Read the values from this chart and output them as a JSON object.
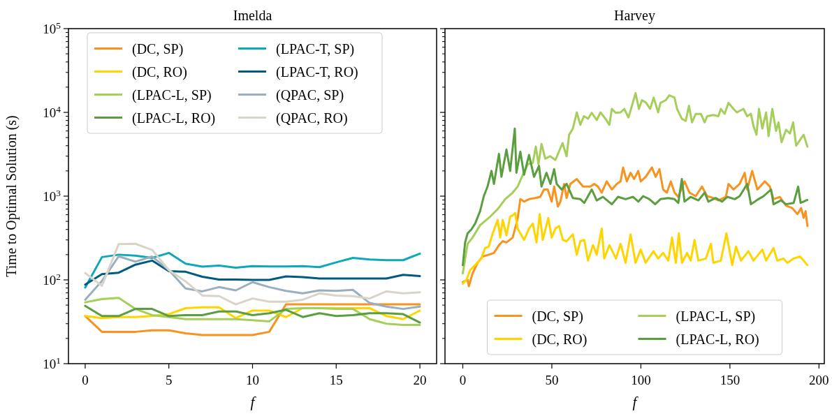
{
  "chart_data": [
    {
      "type": "line",
      "title": "Imelda",
      "xlabel": "f",
      "ylabel": "Time to Optimal Solution (s)",
      "log": "y",
      "legend": "top left",
      "grid": false,
      "xlim": [
        -1,
        21
      ],
      "xticks": [
        0,
        5,
        10,
        15,
        20
      ],
      "ylim": [
        10,
        100000
      ],
      "yticks": [
        {
          "value": 10,
          "label": "10$^{1}$"
        },
        {
          "value": 100,
          "label": "10$^{2}$"
        },
        {
          "value": 1000,
          "label": "10$^{3}$"
        },
        {
          "value": 10000,
          "label": "10$^{4}$"
        },
        {
          "value": 100000,
          "label": "10$^{5}$"
        }
      ],
      "x": [
        0,
        1,
        2,
        3,
        4,
        5,
        6,
        7,
        8,
        9,
        10,
        11,
        12,
        13,
        14,
        15,
        16,
        17,
        18,
        19,
        20
      ],
      "series": [
        {
          "name": "(DC, SP)",
          "color": "#f7931e",
          "values": [
            37,
            24,
            24,
            24,
            25,
            25,
            23,
            22,
            22,
            22,
            22,
            24,
            51,
            51,
            51,
            51,
            51,
            51,
            51,
            51,
            51
          ]
        },
        {
          "name": "(DC, RO)",
          "color": "#ffd500",
          "values": [
            37,
            35,
            36,
            36,
            37,
            39,
            46,
            47,
            47,
            35,
            43,
            43,
            36,
            46,
            46,
            46,
            46,
            46,
            37,
            34,
            43
          ]
        },
        {
          "name": "(LPAC-L, SP)",
          "color": "#a5cf5a",
          "values": [
            54,
            59,
            61,
            45,
            38,
            36,
            34,
            34,
            34,
            34,
            33,
            32,
            45,
            46,
            46,
            45,
            45,
            34,
            30,
            29,
            29
          ]
        },
        {
          "name": "(LPAC-L, RO)",
          "color": "#5a9e3f",
          "values": [
            49,
            37,
            37,
            45,
            45,
            37,
            38,
            38,
            42,
            42,
            38,
            40,
            44,
            36,
            40,
            37,
            38,
            40,
            40,
            39,
            31
          ]
        },
        {
          "name": "(LPAC-T, SP)",
          "color": "#0fa8b8",
          "values": [
            81,
            187,
            200,
            195,
            183,
            210,
            156,
            144,
            148,
            140,
            146,
            145,
            145,
            146,
            142,
            162,
            183,
            175,
            172,
            172,
            206
          ]
        },
        {
          "name": "(LPAC-T, RO)",
          "color": "#005a82",
          "values": [
            88,
            117,
            122,
            152,
            170,
            127,
            125,
            109,
            101,
            101,
            100,
            100,
            110,
            108,
            104,
            104,
            104,
            104,
            104,
            115,
            111
          ]
        },
        {
          "name": "(QPAC, SP)",
          "color": "#9aafbd",
          "values": [
            58,
            97,
            191,
            165,
            190,
            131,
            79,
            73,
            82,
            75,
            94,
            82,
            74,
            69,
            75,
            74,
            76,
            53,
            48,
            45,
            48
          ]
        },
        {
          "name": "(QPAC, RO)",
          "color": "#d8d4c8",
          "values": [
            121,
            85,
            267,
            270,
            228,
            131,
            96,
            65,
            64,
            51,
            60,
            55,
            55,
            58,
            69,
            65,
            64,
            60,
            73,
            69,
            71
          ]
        }
      ]
    },
    {
      "type": "line",
      "title": "Harvey",
      "xlabel": "f",
      "log": "y",
      "legend": "bottom",
      "grid": false,
      "tick_labels": "x",
      "xlim": [
        -10,
        203
      ],
      "xticks": [
        0,
        50,
        100,
        150,
        200
      ],
      "ylim": [
        10,
        100000
      ],
      "yticks": [
        {
          "value": 10,
          "label": null
        },
        {
          "value": 100,
          "label": null
        },
        {
          "value": 1000,
          "label": null
        },
        {
          "value": 10000,
          "label": null
        },
        {
          "value": 100000,
          "label": null
        }
      ],
      "series": [
        {
          "name": "(DC, SP)",
          "color": "#f7931e",
          "x": [
            0,
            2.7,
            3.4,
            5.5,
            8.3,
            11.1,
            14.6,
            17.5,
            20.3,
            22.4,
            24.5,
            28,
            30.8,
            32.3,
            34.4,
            37.2,
            40.7,
            43.5,
            45.6,
            47.7,
            49.9,
            51.3,
            53.4,
            54.8,
            56.9,
            58.3,
            60.4,
            64,
            67.5,
            71.7,
            73.8,
            75.9,
            78,
            80.8,
            83.7,
            86.5,
            88.6,
            90,
            92.1,
            94.2,
            96.2,
            98.5,
            99.9,
            102.7,
            106.2,
            108.3,
            110.4,
            112.5,
            114.6,
            116.8,
            118.9,
            121,
            124.5,
            127.3,
            130.8,
            134.3,
            137.2,
            140.7,
            143.5,
            147.7,
            149.2,
            152,
            155.5,
            158.3,
            159.7,
            162.5,
            165.4,
            169.6,
            172.4,
            174.5,
            178,
            181.5,
            185,
            187.9,
            190,
            191.4,
            192.5,
            193.5
          ],
          "values": [
            94,
            100,
            84,
            120,
            160,
            190,
            200,
            210,
            260,
            290,
            280,
            320,
            540,
            920,
            860,
            920,
            950,
            980,
            1200,
            1200,
            860,
            1300,
            750,
            860,
            1400,
            950,
            1400,
            1600,
            1300,
            1300,
            1400,
            1300,
            1100,
            1500,
            1200,
            1400,
            1500,
            2200,
            1500,
            1900,
            1600,
            2000,
            1500,
            1700,
            2200,
            1700,
            2100,
            1200,
            1100,
            1500,
            1100,
            980,
            1500,
            1100,
            1000,
            1300,
            1000,
            950,
            890,
            980,
            1400,
            1200,
            1400,
            1900,
            1200,
            2000,
            1200,
            1500,
            1300,
            920,
            980,
            770,
            720,
            610,
            720,
            550,
            660,
            440
          ]
        },
        {
          "name": "(DC, RO)",
          "color": "#ffd500",
          "x": [
            0,
            2,
            4.1,
            6.9,
            10.4,
            12.5,
            14.6,
            16.8,
            19.6,
            21,
            22.4,
            24.5,
            26.6,
            28,
            29.4,
            30.8,
            34.4,
            37.2,
            39.3,
            41.4,
            43.2,
            44.9,
            48,
            49.9,
            52,
            54.1,
            56.2,
            58.3,
            61.8,
            64,
            66,
            68.2,
            70.3,
            73.1,
            75.2,
            78,
            79.4,
            82.3,
            86,
            88.6,
            91.4,
            94.2,
            97,
            99.9,
            102.7,
            107,
            109.7,
            112.5,
            115.4,
            117.5,
            119.6,
            121.3,
            123.1,
            125.9,
            128,
            130.1,
            132.3,
            136.5,
            139.3,
            140.7,
            144.9,
            148,
            151.3,
            153.4,
            156.2,
            160.4,
            163.2,
            168.2,
            170.3,
            174.5,
            176.6,
            180.1,
            182.2,
            185.8,
            189.3,
            191.4,
            193.5
          ],
          "values": [
            90,
            100,
            130,
            150,
            180,
            240,
            250,
            360,
            520,
            320,
            520,
            340,
            570,
            590,
            630,
            410,
            300,
            410,
            470,
            280,
            610,
            300,
            550,
            320,
            410,
            440,
            300,
            290,
            350,
            200,
            290,
            300,
            170,
            260,
            200,
            410,
            180,
            260,
            180,
            270,
            160,
            350,
            160,
            230,
            160,
            220,
            180,
            210,
            170,
            320,
            160,
            360,
            160,
            210,
            170,
            300,
            170,
            180,
            270,
            160,
            170,
            360,
            150,
            250,
            170,
            220,
            170,
            230,
            170,
            240,
            170,
            180,
            160,
            180,
            190,
            170,
            150
          ]
        },
        {
          "name": "(LPAC-L, SP)",
          "color": "#a5cf5a",
          "x": [
            0,
            2.7,
            5.5,
            9.7,
            15.4,
            19.6,
            23.8,
            28,
            30.8,
            33.7,
            36.5,
            39.3,
            41,
            42.5,
            44.2,
            46.3,
            49,
            52,
            56,
            58.3,
            59.7,
            61.8,
            64,
            66,
            68,
            70.3,
            72.4,
            75.2,
            77.3,
            80.1,
            82.3,
            83.7,
            85.8,
            88.6,
            90.7,
            93,
            95,
            97,
            98.9,
            100.6,
            103,
            105.2,
            107.2,
            109.7,
            111,
            114,
            116,
            118.9,
            120.3,
            123,
            125.2,
            127,
            128.7,
            130.8,
            133.7,
            135.8,
            137.2,
            140.7,
            143.5,
            144.9,
            147,
            149.2,
            152,
            153.9,
            157.6,
            159.7,
            161.8,
            163.2,
            164.9,
            166.3,
            168.2,
            170.3,
            171.7,
            173.8,
            175.9,
            177.3,
            179,
            181.5,
            183.7,
            185.5,
            187.2,
            190,
            191.4,
            193.5
          ],
          "values": [
            120,
            270,
            320,
            450,
            570,
            700,
            920,
            1100,
            1300,
            1800,
            2400,
            2500,
            3900,
            2400,
            4200,
            2800,
            3000,
            2700,
            4300,
            3000,
            5400,
            6400,
            10000,
            7100,
            9000,
            8400,
            9900,
            8100,
            10000,
            8400,
            7100,
            11000,
            9900,
            10000,
            11000,
            8700,
            12000,
            17000,
            11000,
            14000,
            13000,
            11000,
            15000,
            10000,
            13000,
            14000,
            16000,
            15000,
            11000,
            8400,
            7900,
            12000,
            7600,
            9600,
            9600,
            7600,
            9000,
            9300,
            9000,
            11000,
            9600,
            13000,
            11000,
            10000,
            11000,
            9000,
            9600,
            6900,
            5400,
            11000,
            6400,
            10000,
            5200,
            11000,
            6000,
            7600,
            4400,
            6200,
            5600,
            7600,
            4000,
            4900,
            5400,
            3900
          ]
        },
        {
          "name": "(LPAC-L, RO)",
          "color": "#5a9e3f",
          "x": [
            0,
            1.3,
            2.7,
            4.8,
            6.9,
            9.7,
            11.8,
            13.9,
            16.1,
            17.5,
            20.3,
            21.7,
            24.5,
            26.6,
            29.2,
            30.1,
            32.3,
            34.4,
            37.2,
            40,
            42.8,
            44.2,
            47,
            49.2,
            51.3,
            52.7,
            55.5,
            58.3,
            61.8,
            66,
            68.2,
            72.4,
            75.2,
            78.7,
            83.7,
            87.2,
            91.4,
            95.6,
            98.6,
            101.3,
            104.8,
            108,
            111,
            115.4,
            118.9,
            121,
            123,
            124.5,
            128,
            132.3,
            135.8,
            137.9,
            142,
            145.6,
            148.5,
            152.7,
            155.5,
            159.7,
            161.8,
            166,
            168.9,
            173.1,
            174.5,
            178.6,
            181.5,
            185.8,
            188.3,
            189.7,
            193.5
          ],
          "values": [
            150,
            280,
            360,
            400,
            470,
            660,
            1000,
            1300,
            2000,
            1400,
            3200,
            1700,
            3600,
            2000,
            6400,
            1900,
            3400,
            1800,
            3100,
            1700,
            2300,
            1300,
            1900,
            1400,
            2100,
            1400,
            1200,
            1400,
            950,
            920,
            830,
            1200,
            890,
            980,
            800,
            980,
            920,
            980,
            860,
            1000,
            920,
            800,
            920,
            950,
            920,
            830,
            1600,
            860,
            980,
            890,
            1100,
            860,
            950,
            860,
            980,
            920,
            1000,
            1400,
            800,
            920,
            1000,
            1200,
            800,
            890,
            800,
            830,
            1300,
            830,
            900
          ]
        }
      ]
    }
  ]
}
